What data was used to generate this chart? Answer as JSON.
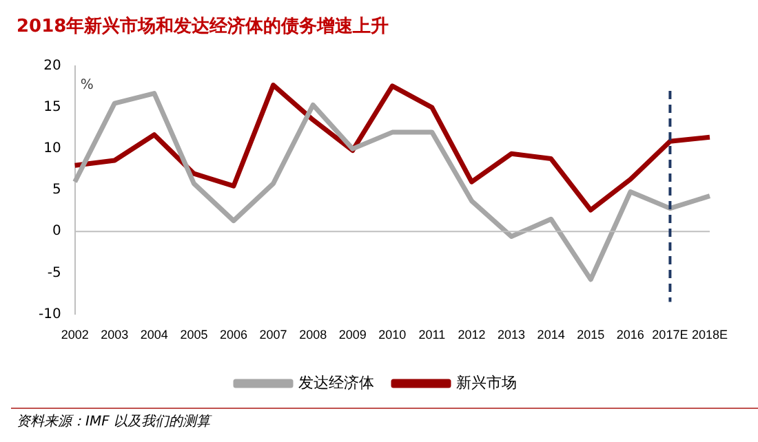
{
  "chart_data": {
    "type": "line",
    "title": "2018年新兴市场和发达经济体的债务增速上升",
    "ylabel": "%",
    "categories": [
      "2002",
      "2003",
      "2004",
      "2005",
      "2006",
      "2007",
      "2008",
      "2009",
      "2010",
      "2011",
      "2012",
      "2013",
      "2014",
      "2015",
      "2016",
      "2017E",
      "2018E"
    ],
    "series": [
      {
        "name": "发达经济体",
        "color": "#a6a6a6",
        "values": [
          6,
          15.5,
          16.7,
          5.8,
          1.3,
          5.8,
          15.3,
          10,
          12,
          12,
          3.7,
          -0.6,
          1.5,
          -5.8,
          4.8,
          2.8,
          4.3
        ]
      },
      {
        "name": "新兴市场",
        "color": "#990000",
        "values": [
          8,
          8.6,
          11.7,
          7,
          5.5,
          17.7,
          13.5,
          9.8,
          17.6,
          15,
          6,
          9.4,
          8.8,
          2.6,
          6.3,
          10.9,
          11.4
        ]
      }
    ],
    "ylim": [
      -10,
      20
    ],
    "yticks": [
      -10,
      -5,
      0,
      5,
      10,
      15,
      20
    ],
    "grid": false,
    "legend": "bottom",
    "marker": "none",
    "line_style": "solid",
    "ref_lines": [
      {
        "axis": "x",
        "value": "2017E",
        "color": "#1f3864",
        "line_style": "dashed"
      }
    ],
    "annotations": [
      "资料来源：IMF 以及我们的测算"
    ]
  }
}
